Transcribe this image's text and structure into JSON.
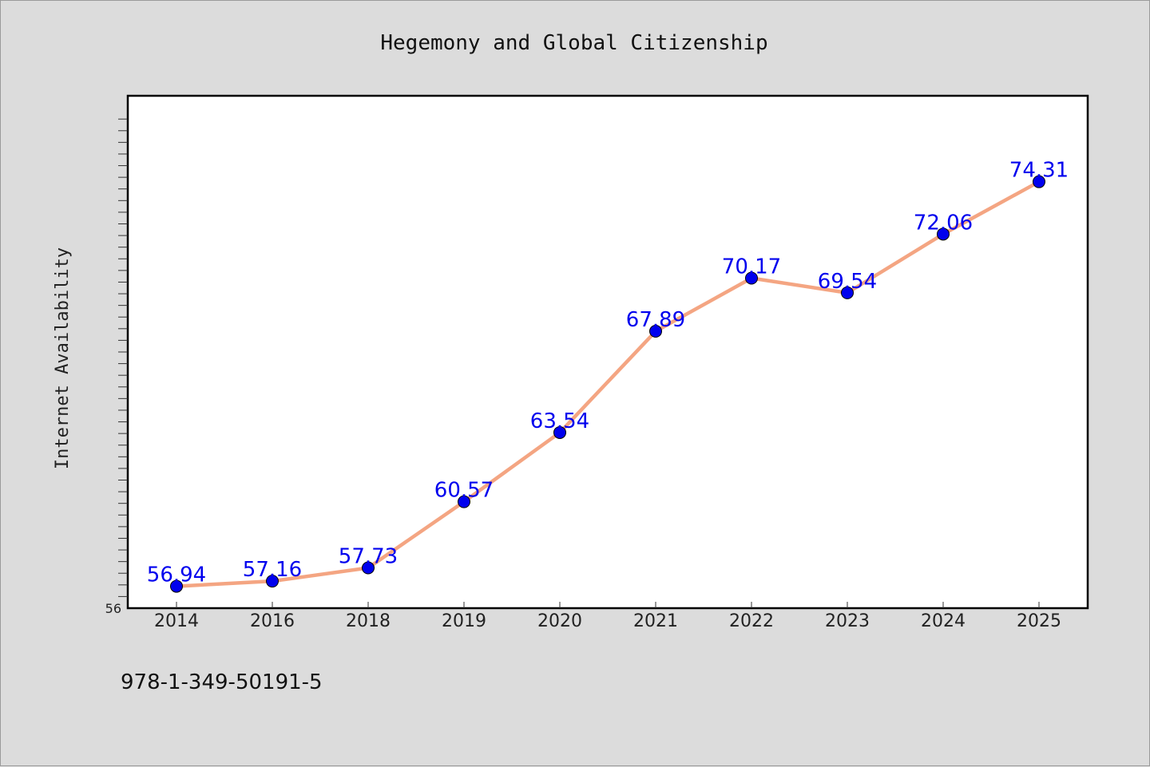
{
  "chart_data": {
    "type": "line",
    "title": "Hegemony and Global Citizenship",
    "xlabel": "",
    "ylabel": "Internet Availability",
    "categories": [
      "2014",
      "2016",
      "2018",
      "2019",
      "2020",
      "2021",
      "2022",
      "2023",
      "2024",
      "2025"
    ],
    "series": [
      {
        "values": [
          56.94,
          57.16,
          57.73,
          60.57,
          63.54,
          67.89,
          70.17,
          69.54,
          72.06,
          74.31
        ]
      }
    ],
    "data_labels": [
      "56.94",
      "57.16",
      "57.73",
      "60.57",
      "63.54",
      "67.89",
      "70.17",
      "69.54",
      "72.06",
      "74.31"
    ],
    "ylim": [
      56,
      78
    ],
    "y_tick_labels": [
      "56"
    ],
    "grid": false,
    "legend": "none",
    "colors": {
      "line": "#f4a582",
      "marker": "#0000ee",
      "label": "#0000ee",
      "background": "#dcdcdc",
      "plot_background": "#ffffff"
    }
  },
  "footer_note": "978-1-349-50191-5"
}
